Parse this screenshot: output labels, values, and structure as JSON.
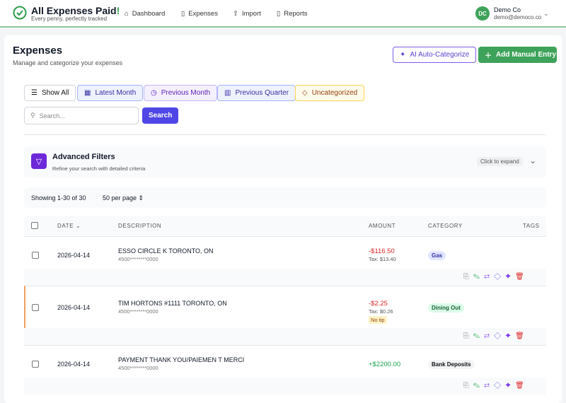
{
  "header": {
    "brand": "All Expenses Paid",
    "brand_mark": "!",
    "tagline": "Every penny, perfectly tracked",
    "nav": [
      "Dashboard",
      "Expenses",
      "Import",
      "Reports"
    ],
    "avatar": "DC",
    "user_name": "Demo Co",
    "user_email": "demo@democo.co"
  },
  "page": {
    "title": "Expenses",
    "subtitle": "Manage and categorize your expenses",
    "actions": [
      "AI Auto-Categorize",
      "Add Manual Entry"
    ]
  },
  "filters": {
    "quick": [
      "Show All",
      "Latest Month",
      "Previous Month",
      "Previous Quarter",
      "Uncategorized"
    ],
    "search_placeholder": "Search...",
    "search_button": "Search"
  },
  "advanced": {
    "title": "Advanced Filters",
    "subtitle": "Refine your search with detailed criteria",
    "hint": "Click to expand"
  },
  "pagination": {
    "showing": "Showing 1-30 of 30",
    "per_page": "50 per page"
  },
  "table": {
    "columns": [
      "DATE",
      "DESCRIPTION",
      "AMOUNT",
      "CATEGORY",
      "TAGS"
    ],
    "rows": [
      {
        "date": "2026-04-14",
        "description": "ESSO CIRCLE K TORONTO, ON",
        "card": "4500********0000",
        "amount": "-$116.50",
        "tax": "Tax: $13.40",
        "category": "Gas"
      },
      {
        "date": "2026-04-14",
        "description": "TIM HORTONS #1111 TORONTO, ON",
        "card": "4500********0000",
        "amount": "-$2.25",
        "tax": "Tax: $0.26",
        "badge": "No tip",
        "category": "Dining Out"
      },
      {
        "date": "2026-04-14",
        "description": "PAYMENT THANK YOU/PAIEMEN T MERCI",
        "card": "4500********0000",
        "amount": "+$2200.00",
        "category": "Bank Deposits"
      }
    ]
  }
}
